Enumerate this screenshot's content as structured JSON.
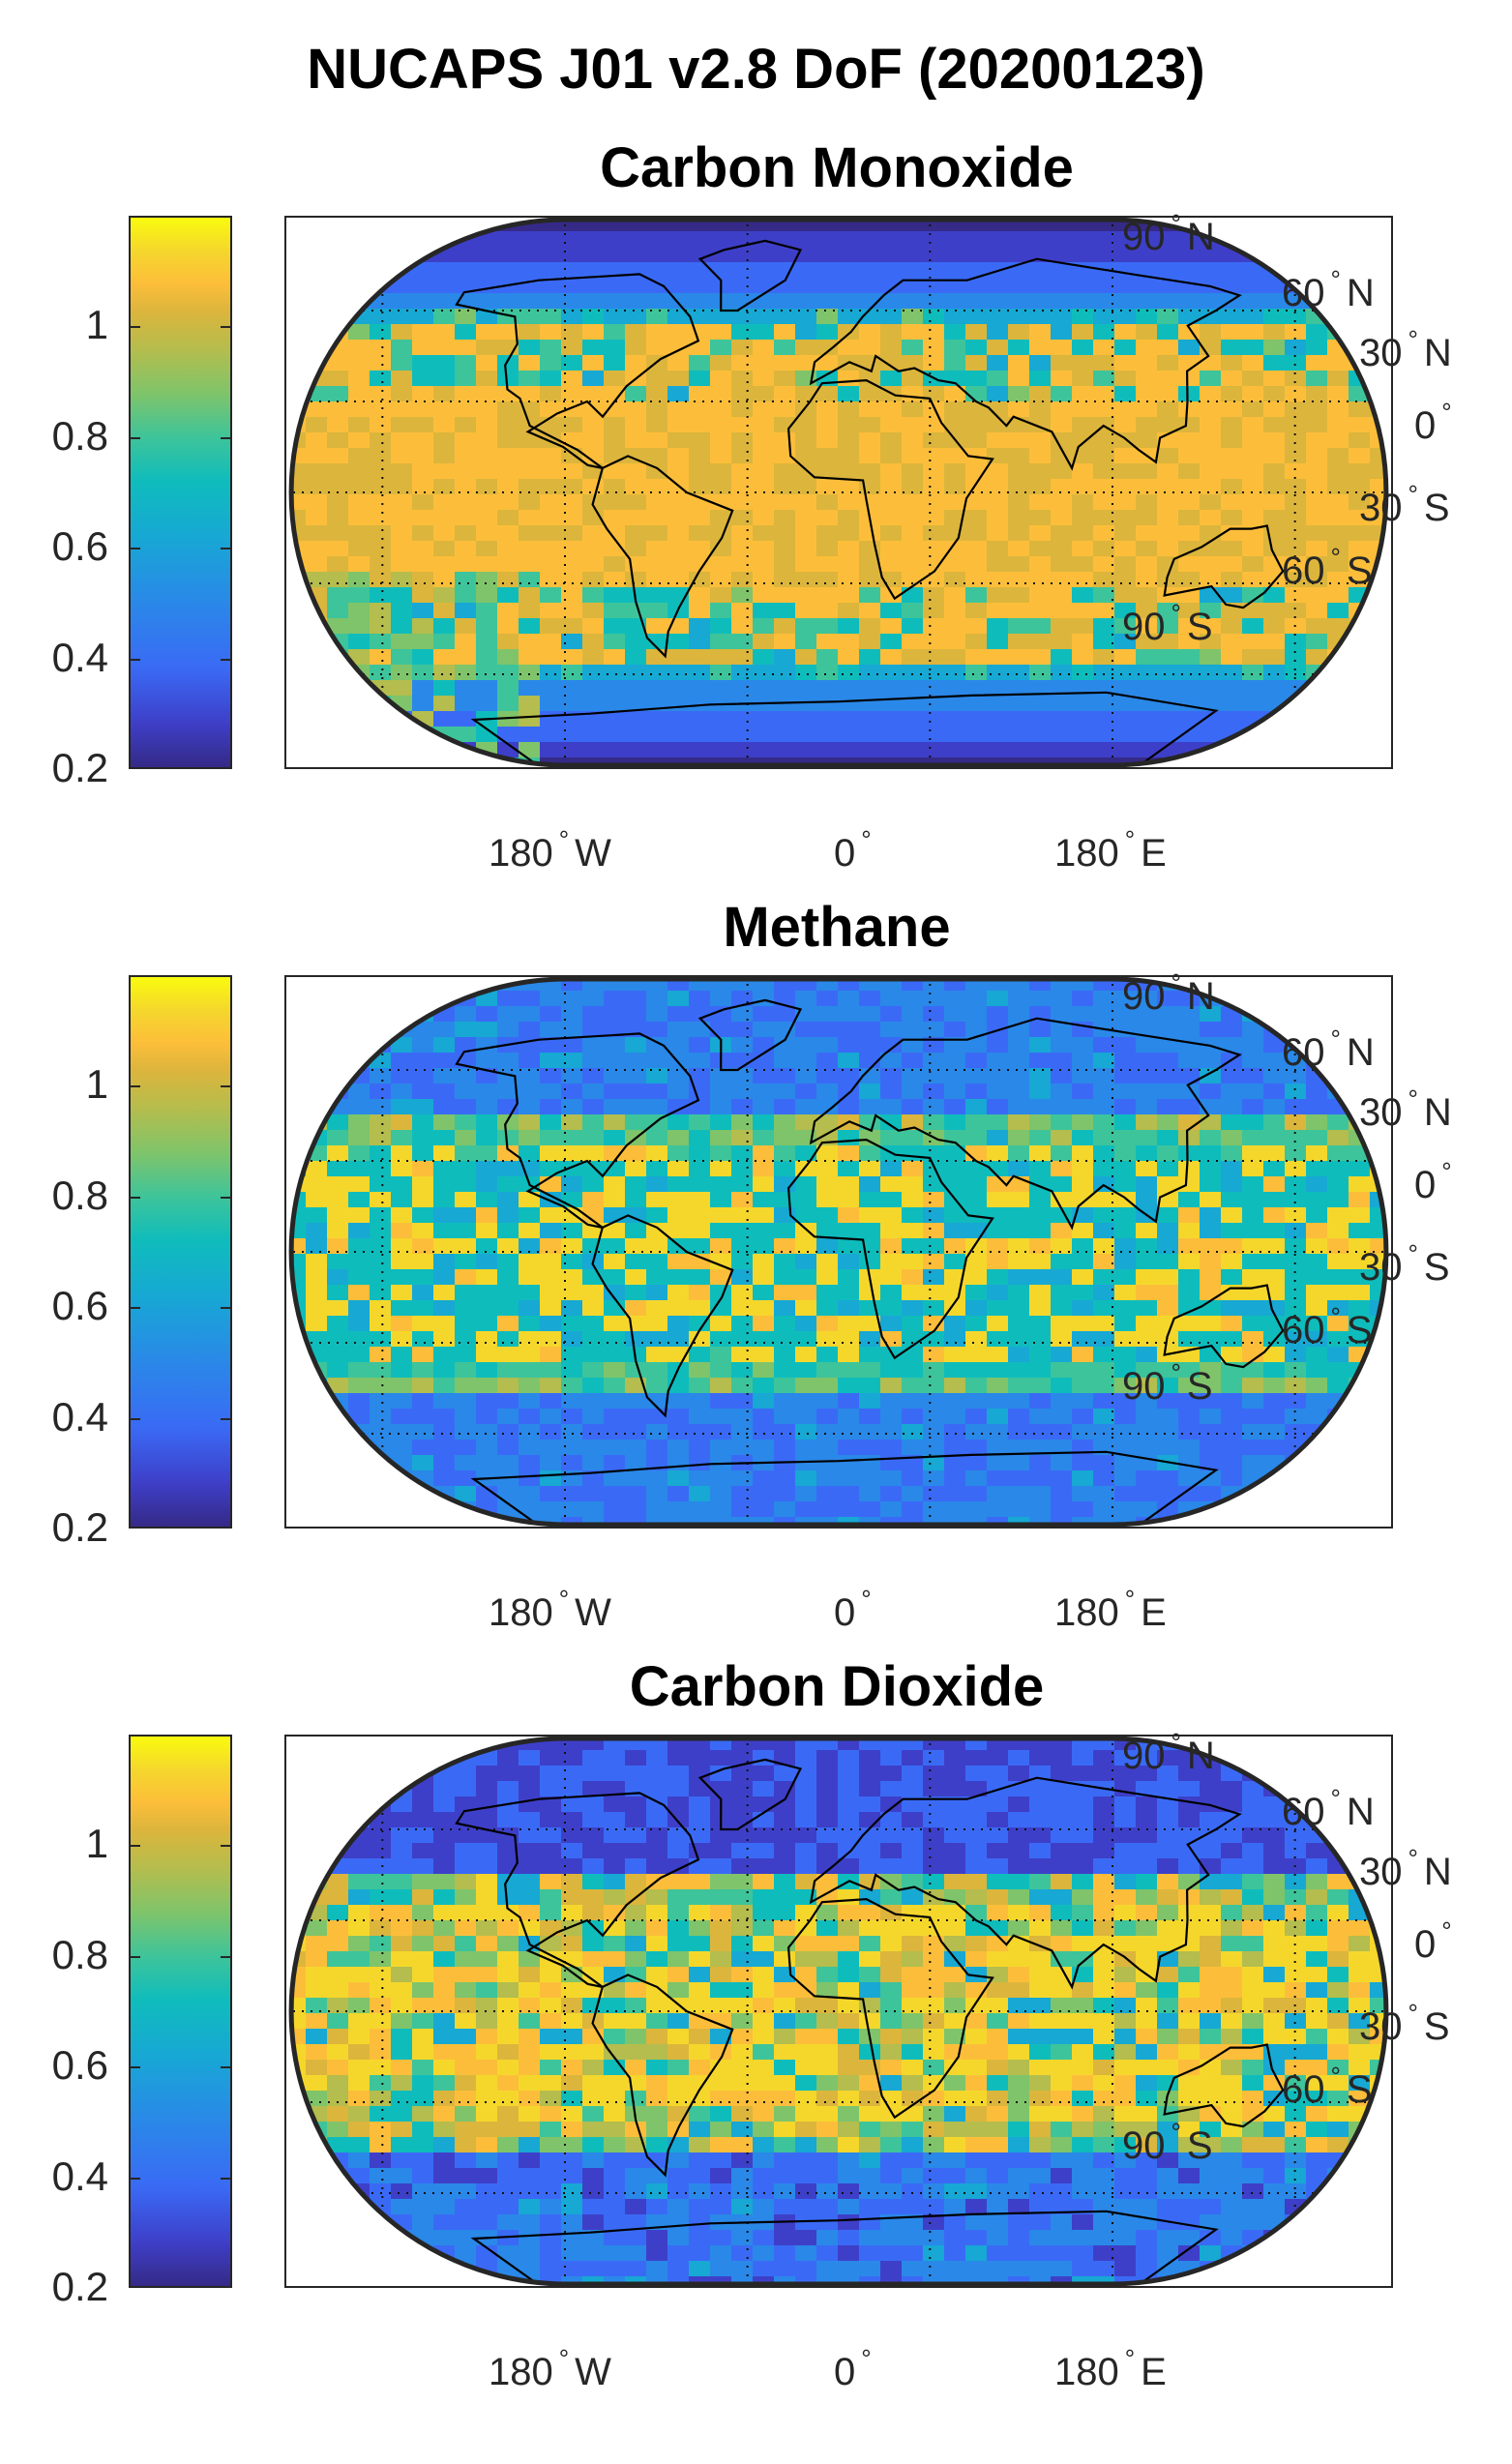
{
  "figure": {
    "title": "NUCAPS J01 v2.8 DoF (20200123)"
  },
  "colormap": {
    "name": "parula",
    "colors": [
      "#352a87",
      "#3e3fc8",
      "#3a6af5",
      "#2a88e8",
      "#17a8d4",
      "#0fbcbc",
      "#3ec49a",
      "#7fc46a",
      "#b4bd4d",
      "#dcb53c",
      "#fcbe3a",
      "#f5d72c",
      "#f9fb0e"
    ]
  },
  "colorbar": {
    "range": [
      0.2,
      1.2
    ],
    "ticks": [
      "0.2",
      "0.4",
      "0.6",
      "0.8",
      "1"
    ]
  },
  "lat_labels": [
    {
      "num": "90",
      "hem": "N"
    },
    {
      "num": "60",
      "hem": "N"
    },
    {
      "num": "30",
      "hem": "N"
    },
    {
      "num": "0",
      "hem": ""
    },
    {
      "num": "30",
      "hem": "S"
    },
    {
      "num": "60",
      "hem": "S"
    },
    {
      "num": "90",
      "hem": "S"
    }
  ],
  "lon_labels": [
    {
      "num": "180",
      "hem": "W"
    },
    {
      "num": "0",
      "hem": ""
    },
    {
      "num": "180",
      "hem": "E"
    }
  ],
  "panels": [
    {
      "title": "Carbon Monoxide",
      "dominant": "orange",
      "mean_value": 1.02
    },
    {
      "title": "Methane",
      "dominant": "mixed",
      "mean_value": 0.62
    },
    {
      "title": "Carbon Dioxide",
      "dominant": "mixed",
      "mean_value": 0.58
    }
  ],
  "chart_data": {
    "type": "heatmap",
    "title": "NUCAPS J01 v2.8 DoF (20200123)",
    "projection": "Robinson-like pseudocylindrical, global",
    "colorbar_range": [
      0.2,
      1.2
    ],
    "colorbar_ticks": [
      0.2,
      0.4,
      0.6,
      0.8,
      1
    ],
    "subplots": [
      {
        "title": "Carbon Monoxide",
        "typical_range": [
          0.3,
          1.1
        ],
        "notes_value_high_region": "tropics and midlatitudes ~1.0",
        "notes_value_low_region": "polar and Southern Ocean ~0.4-0.6"
      },
      {
        "title": "Methane",
        "typical_range": [
          0.3,
          1.15
        ],
        "notes_value_high_region": "subtropical oceans, Sahara, Australia ~1.0-1.1",
        "notes_value_low_region": "high latitudes ~0.3-0.5"
      },
      {
        "title": "Carbon Dioxide",
        "typical_range": [
          0.25,
          1.15
        ],
        "notes_value_high_region": "tropical/subtropical bands ~1.0-1.1",
        "notes_value_low_region": "northern high latitudes ~0.25-0.4"
      }
    ]
  }
}
